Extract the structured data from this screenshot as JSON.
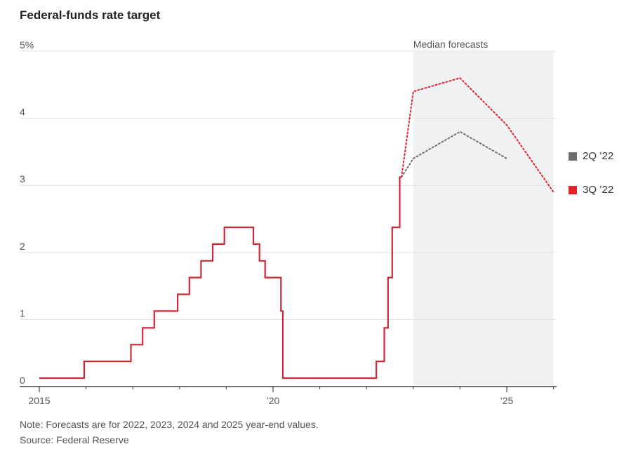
{
  "title": "Federal-funds rate target",
  "note": "Note: Forecasts are for 2022, 2023, 2024 and 2025 year-end values.",
  "source": "Source: Federal Reserve",
  "forecast_label": "Median forecasts",
  "colors": {
    "actual": "#cc2a36",
    "q2": "#6f6f6f",
    "q3": "#e2232f",
    "shade": "#f0f1f3",
    "grid": "#e2e2e2"
  },
  "legend": [
    {
      "label": "2Q ’22",
      "color": "#6f6f6f"
    },
    {
      "label": "3Q ’22",
      "color": "#e2232f"
    }
  ],
  "chart_data": {
    "type": "line",
    "title": "Federal-funds rate target",
    "ylim": [
      0,
      5
    ],
    "xlim": [
      2015,
      2026.1
    ],
    "y_ticks": [
      {
        "value": 5,
        "label": "5%"
      },
      {
        "value": 4,
        "label": "4"
      },
      {
        "value": 3,
        "label": "3"
      },
      {
        "value": 2,
        "label": "2"
      },
      {
        "value": 1,
        "label": "1"
      },
      {
        "value": 0,
        "label": "0"
      }
    ],
    "x_ticks": [
      {
        "value": 2015,
        "label": "2015"
      },
      {
        "value": 2020,
        "label": "’20"
      },
      {
        "value": 2025,
        "label": "’25"
      }
    ],
    "forecast_region": [
      2023.0,
      2026.0
    ],
    "actual": {
      "name": "Federal-funds rate target",
      "style": "step",
      "points": [
        [
          2015.0,
          0.125
        ],
        [
          2015.96,
          0.375
        ],
        [
          2016.96,
          0.625
        ],
        [
          2017.21,
          0.875
        ],
        [
          2017.46,
          1.125
        ],
        [
          2017.96,
          1.375
        ],
        [
          2018.21,
          1.625
        ],
        [
          2018.46,
          1.875
        ],
        [
          2018.71,
          2.125
        ],
        [
          2018.96,
          2.375
        ],
        [
          2019.58,
          2.125
        ],
        [
          2019.71,
          1.875
        ],
        [
          2019.83,
          1.625
        ],
        [
          2020.17,
          1.125
        ],
        [
          2020.21,
          0.125
        ],
        [
          2022.21,
          0.375
        ],
        [
          2022.38,
          0.875
        ],
        [
          2022.46,
          1.625
        ],
        [
          2022.55,
          2.375
        ],
        [
          2022.71,
          3.125
        ],
        [
          2022.75,
          3.125
        ]
      ]
    },
    "series": [
      {
        "name": "2Q ’22",
        "x": [
          2022.75,
          2023,
          2024,
          2025
        ],
        "values": [
          3.125,
          3.4,
          3.8,
          3.4
        ]
      },
      {
        "name": "3Q ’22",
        "x": [
          2022.75,
          2023,
          2024,
          2025,
          2026
        ],
        "values": [
          3.125,
          4.4,
          4.6,
          3.9,
          2.9
        ]
      }
    ]
  }
}
